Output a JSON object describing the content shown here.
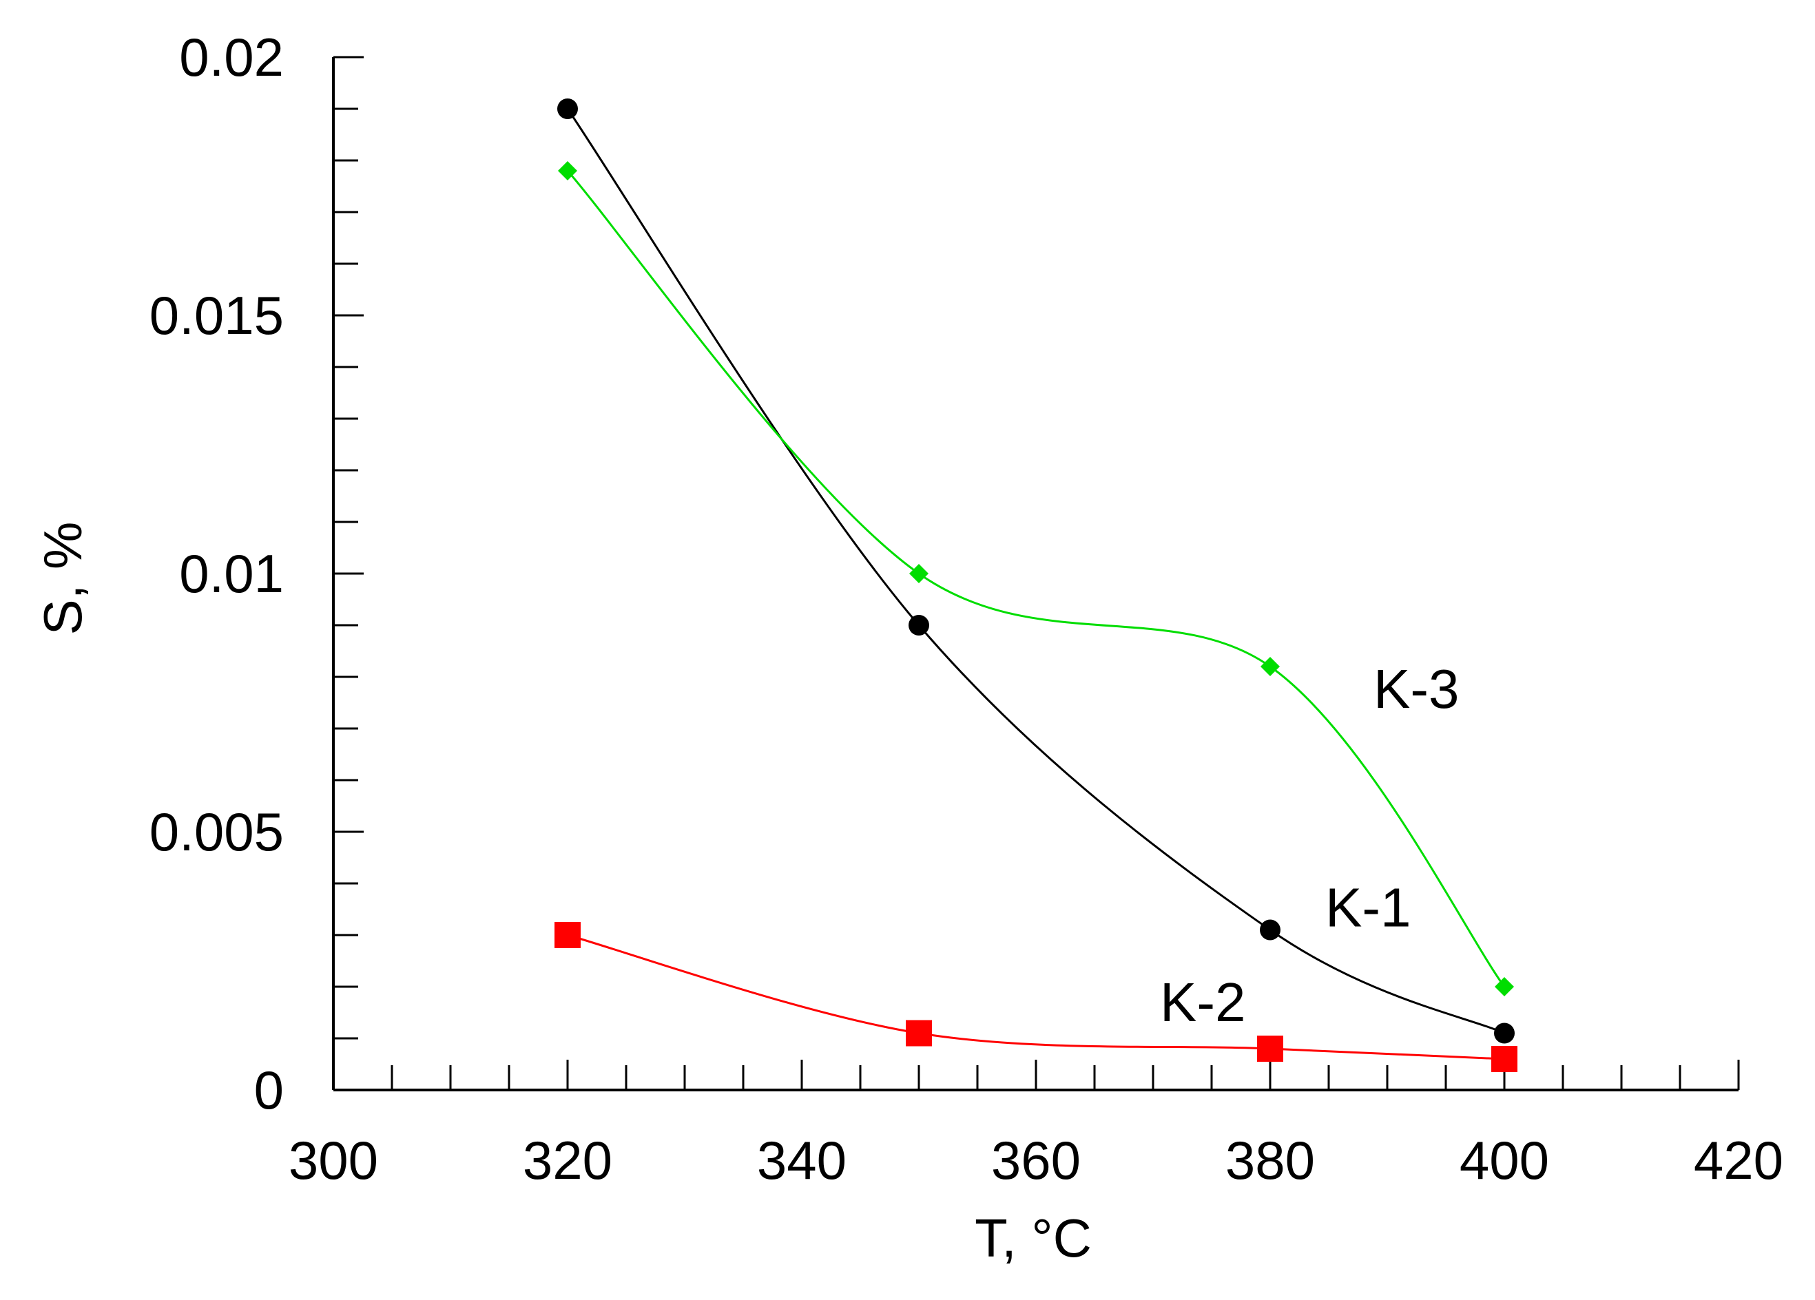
{
  "chart_data": {
    "type": "line",
    "title": "",
    "xlabel": "T, °C",
    "ylabel": "S, %",
    "xlim": [
      300,
      420
    ],
    "ylim": [
      0,
      0.02
    ],
    "x_ticks": [
      "300",
      "320",
      "340",
      "360",
      "380",
      "400",
      "420"
    ],
    "y_ticks": [
      "0",
      "0.005",
      "0.01",
      "0.015",
      "0.02"
    ],
    "grid": false,
    "legend": "none",
    "series": [
      {
        "name": "K-1",
        "color": "#000000",
        "marker": "circle",
        "x": [
          320,
          350,
          380,
          400
        ],
        "y": [
          0.019,
          0.009,
          0.0031,
          0.0011
        ]
      },
      {
        "name": "K-2",
        "color": "#ff0000",
        "marker": "square",
        "x": [
          320,
          350,
          380,
          400
        ],
        "y": [
          0.003,
          0.0011,
          0.0008,
          0.0006
        ]
      },
      {
        "name": "K-3",
        "color": "#00dd00",
        "marker": "diamond",
        "x": [
          320,
          350,
          380,
          400
        ],
        "y": [
          0.0178,
          0.01,
          0.0082,
          0.002
        ]
      }
    ]
  }
}
